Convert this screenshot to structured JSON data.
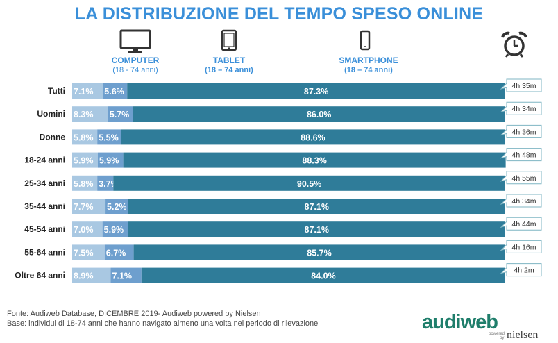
{
  "title": "LA DISTRIBUZIONE DEL TEMPO SPESO ONLINE",
  "legend": {
    "computer": {
      "name": "COMPUTER",
      "range": "(18 - 74 anni)"
    },
    "tablet": {
      "name": "TABLET",
      "range": "(18 – 74 anni)"
    },
    "smartphone": {
      "name": "SMARTPHONE",
      "range": "(18 – 74 anni)"
    }
  },
  "icons": {
    "computer": "monitor-icon",
    "tablet": "tablet-icon",
    "smartphone": "smartphone-icon",
    "time": "alarm-clock-icon"
  },
  "colors": {
    "computer": "#a9c8e2",
    "tablet": "#6e9fce",
    "smartphone": "#2f7c99",
    "accent": "#3a8fd9"
  },
  "chart_data": {
    "type": "bar",
    "stacked": true,
    "orientation": "horizontal",
    "categories": [
      "Tutti",
      "Uomini",
      "Donne",
      "18-24 anni",
      "25-34 anni",
      "35-44 anni",
      "45-54 anni",
      "55-64 anni",
      "Oltre 64 anni"
    ],
    "series": [
      {
        "name": "COMPUTER",
        "values": [
          7.1,
          8.3,
          5.8,
          5.9,
          5.8,
          7.7,
          7.0,
          7.5,
          8.9
        ],
        "labels": [
          "7.1%",
          "8.3%",
          "5.8%",
          "5.9%",
          "5.8%",
          "7.7%",
          "7.0%",
          "7.5%",
          "8.9%"
        ]
      },
      {
        "name": "TABLET",
        "values": [
          5.6,
          5.7,
          5.5,
          5.9,
          3.7,
          5.2,
          5.9,
          6.7,
          7.1
        ],
        "labels": [
          "5.6%",
          "5.7%",
          "5.5%",
          "5.9%",
          "3.7%",
          "5.2%",
          "5.9%",
          "6.7%",
          "7.1%"
        ]
      },
      {
        "name": "SMARTPHONE",
        "values": [
          87.3,
          86.0,
          88.6,
          88.3,
          90.5,
          87.1,
          87.1,
          85.7,
          84.0
        ],
        "labels": [
          "87.3%",
          "86.0%",
          "88.6%",
          "88.3%",
          "90.5%",
          "87.1%",
          "87.1%",
          "85.7%",
          "84.0%"
        ]
      }
    ],
    "totals": [
      "4h 35m",
      "4h 34m",
      "4h 36m",
      "4h 48m",
      "4h 55m",
      "4h 34m",
      "4h 44m",
      "4h 16m",
      "4h 2m"
    ],
    "xlim": [
      0,
      100
    ]
  },
  "footnotes": {
    "source": "Fonte: Audiweb Database, DICEMBRE 2019- Audiweb powered by Nielsen",
    "base": "Base: individui di 18-74 anni che hanno navigato almeno una volta nel periodo di rilevazione"
  },
  "logo": {
    "main": "audiweb",
    "powered": "powered",
    "by": "by",
    "brand": "nielsen"
  }
}
